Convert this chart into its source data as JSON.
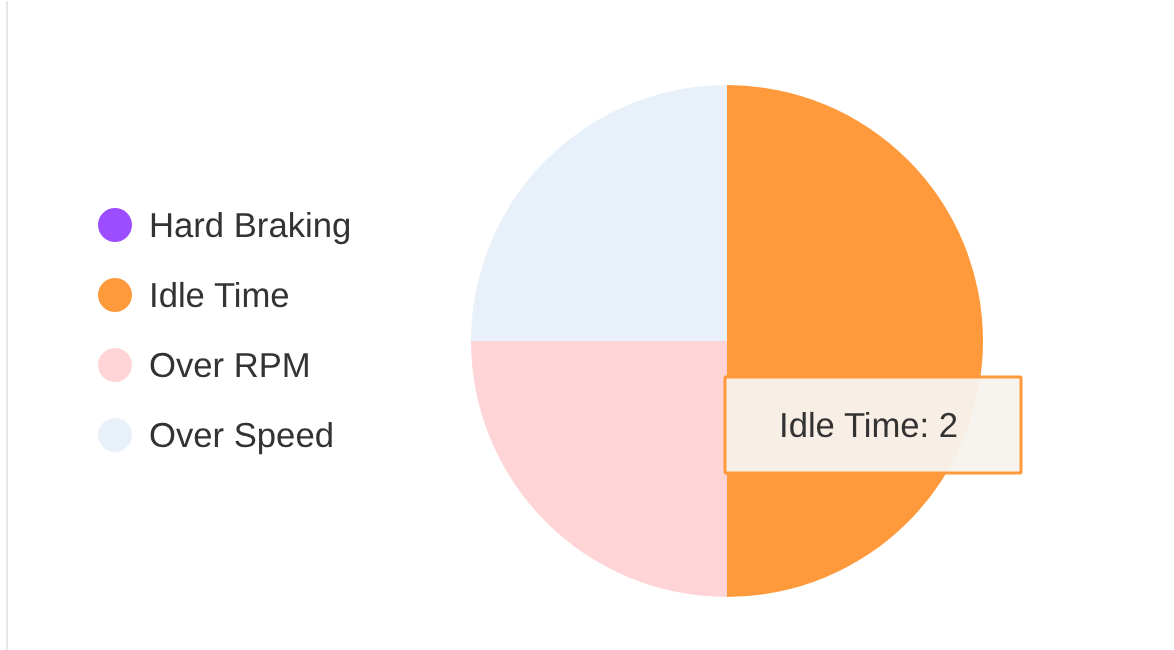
{
  "chart_data": {
    "type": "pie",
    "categories": [
      "Hard Braking",
      "Idle Time",
      "Over RPM",
      "Over Speed"
    ],
    "values": [
      0,
      2,
      1,
      1
    ],
    "colors": [
      "#9b4dff",
      "#ff9a3c",
      "#ffd4d6",
      "#e8f1fa"
    ],
    "value_labels": [
      null,
      "Idle Time: 2",
      null,
      null
    ],
    "legend": "left"
  }
}
